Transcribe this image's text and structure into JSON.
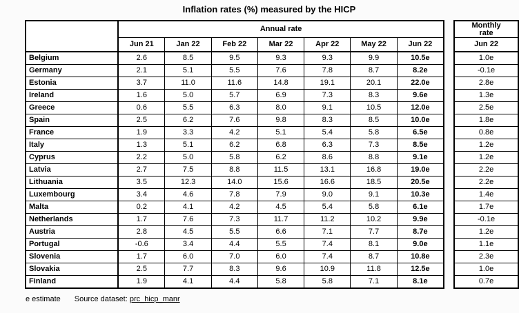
{
  "chart_data": {
    "type": "table",
    "title": "Inflation rates (%) measured by the HICP",
    "column_group_annual": "Annual rate",
    "column_group_monthly_lines": [
      "Monthly",
      "rate"
    ],
    "annual_columns": [
      "Jun 21",
      "Jan 22",
      "Feb 22",
      "Mar 22",
      "Apr 22",
      "May 22",
      "Jun 22"
    ],
    "monthly_column": "Jun 22",
    "rows": [
      {
        "country": "Belgium",
        "annual": [
          "2.6",
          "8.5",
          "9.5",
          "9.3",
          "9.3",
          "9.9",
          "10.5e"
        ],
        "monthly": "1.0e"
      },
      {
        "country": "Germany",
        "annual": [
          "2.1",
          "5.1",
          "5.5",
          "7.6",
          "7.8",
          "8.7",
          "8.2e"
        ],
        "monthly": "-0.1e"
      },
      {
        "country": "Estonia",
        "annual": [
          "3.7",
          "11.0",
          "11.6",
          "14.8",
          "19.1",
          "20.1",
          "22.0e"
        ],
        "monthly": "2.8e"
      },
      {
        "country": "Ireland",
        "annual": [
          "1.6",
          "5.0",
          "5.7",
          "6.9",
          "7.3",
          "8.3",
          "9.6e"
        ],
        "monthly": "1.3e"
      },
      {
        "country": "Greece",
        "annual": [
          "0.6",
          "5.5",
          "6.3",
          "8.0",
          "9.1",
          "10.5",
          "12.0e"
        ],
        "monthly": "2.5e"
      },
      {
        "country": "Spain",
        "annual": [
          "2.5",
          "6.2",
          "7.6",
          "9.8",
          "8.3",
          "8.5",
          "10.0e"
        ],
        "monthly": "1.8e"
      },
      {
        "country": "France",
        "annual": [
          "1.9",
          "3.3",
          "4.2",
          "5.1",
          "5.4",
          "5.8",
          "6.5e"
        ],
        "monthly": "0.8e"
      },
      {
        "country": "Italy",
        "annual": [
          "1.3",
          "5.1",
          "6.2",
          "6.8",
          "6.3",
          "7.3",
          "8.5e"
        ],
        "monthly": "1.2e"
      },
      {
        "country": "Cyprus",
        "annual": [
          "2.2",
          "5.0",
          "5.8",
          "6.2",
          "8.6",
          "8.8",
          "9.1e"
        ],
        "monthly": "1.2e"
      },
      {
        "country": "Latvia",
        "annual": [
          "2.7",
          "7.5",
          "8.8",
          "11.5",
          "13.1",
          "16.8",
          "19.0e"
        ],
        "monthly": "2.2e"
      },
      {
        "country": "Lithuania",
        "annual": [
          "3.5",
          "12.3",
          "14.0",
          "15.6",
          "16.6",
          "18.5",
          "20.5e"
        ],
        "monthly": "2.2e"
      },
      {
        "country": "Luxembourg",
        "annual": [
          "3.4",
          "4.6",
          "7.8",
          "7.9",
          "9.0",
          "9.1",
          "10.3e"
        ],
        "monthly": "1.4e"
      },
      {
        "country": "Malta",
        "annual": [
          "0.2",
          "4.1",
          "4.2",
          "4.5",
          "5.4",
          "5.8",
          "6.1e"
        ],
        "monthly": "1.7e"
      },
      {
        "country": "Netherlands",
        "annual": [
          "1.7",
          "7.6",
          "7.3",
          "11.7",
          "11.2",
          "10.2",
          "9.9e"
        ],
        "monthly": "-0.1e"
      },
      {
        "country": "Austria",
        "annual": [
          "2.8",
          "4.5",
          "5.5",
          "6.6",
          "7.1",
          "7.7",
          "8.7e"
        ],
        "monthly": "1.2e"
      },
      {
        "country": "Portugal",
        "annual": [
          "-0.6",
          "3.4",
          "4.4",
          "5.5",
          "7.4",
          "8.1",
          "9.0e"
        ],
        "monthly": "1.1e"
      },
      {
        "country": "Slovenia",
        "annual": [
          "1.7",
          "6.0",
          "7.0",
          "6.0",
          "7.4",
          "8.7",
          "10.8e"
        ],
        "monthly": "2.3e"
      },
      {
        "country": "Slovakia",
        "annual": [
          "2.5",
          "7.7",
          "8.3",
          "9.6",
          "10.9",
          "11.8",
          "12.5e"
        ],
        "monthly": "1.0e"
      },
      {
        "country": "Finland",
        "annual": [
          "1.9",
          "4.1",
          "4.4",
          "5.8",
          "5.8",
          "7.1",
          "8.1e"
        ],
        "monthly": "0.7e"
      }
    ]
  },
  "footer": {
    "estimate_note": "e estimate",
    "source_label": "Source dataset:",
    "source_link": "prc_hicp_manr"
  }
}
